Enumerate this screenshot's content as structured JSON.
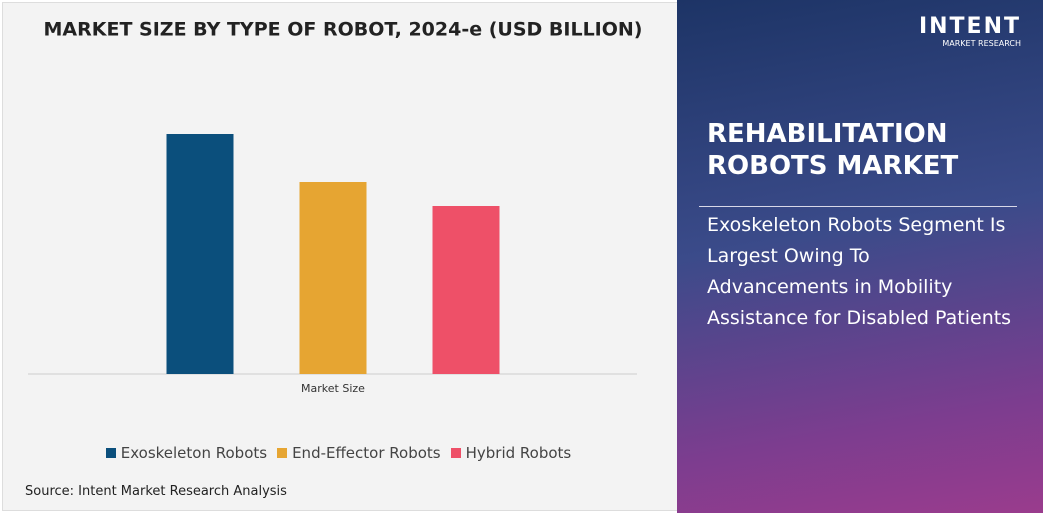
{
  "chart_data": {
    "type": "bar",
    "title": "MARKET SIZE BY TYPE OF ROBOT, 2024-e (USD BILLION)",
    "categories": [
      "Market Size"
    ],
    "series": [
      {
        "name": "Exoskeleton Robots",
        "color": "#0b4f7c",
        "values": [
          10
        ]
      },
      {
        "name": "End-Effector Robots",
        "color": "#e6a532",
        "values": [
          8
        ]
      },
      {
        "name": "Hybrid Robots",
        "color": "#ee5068",
        "values": [
          7
        ]
      }
    ],
    "legend": "bottom"
  },
  "source": "Source: Intent Market Research Analysis",
  "logo": {
    "name": "INTENT",
    "tagline": "MARKET RESEARCH"
  },
  "panel": {
    "title": "REHABILITATION ROBOTS MARKET",
    "text": "Exoskeleton Robots Segment Is Largest Owing To Advancements in Mobility Assistance for Disabled Patients"
  }
}
